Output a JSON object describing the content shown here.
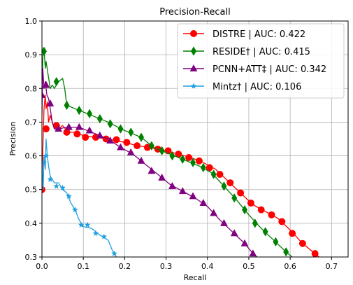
{
  "chart_data": {
    "type": "line",
    "title": "Precision-Recall",
    "xlabel": "Recall",
    "ylabel": "Precision",
    "xlim": [
      0.0,
      0.74
    ],
    "ylim": [
      0.3,
      1.0
    ],
    "xticks": [
      "0.0",
      "0.1",
      "0.2",
      "0.3",
      "0.4",
      "0.5",
      "0.6",
      "0.7"
    ],
    "yticks": [
      "0.3",
      "0.4",
      "0.5",
      "0.6",
      "0.7",
      "0.8",
      "0.9",
      "1.0"
    ],
    "grid": true,
    "legend_position": "top-right",
    "series": [
      {
        "name": "DISTRE | AUC: 0.422",
        "color": "#ff0000",
        "marker": "circle",
        "markers_at": [
          [
            0.0,
            0.5
          ],
          [
            0.01,
            0.68
          ],
          [
            0.035,
            0.69
          ],
          [
            0.06,
            0.67
          ],
          [
            0.085,
            0.665
          ],
          [
            0.105,
            0.655
          ],
          [
            0.13,
            0.655
          ],
          [
            0.155,
            0.65
          ],
          [
            0.18,
            0.648
          ],
          [
            0.205,
            0.64
          ],
          [
            0.23,
            0.63
          ],
          [
            0.255,
            0.625
          ],
          [
            0.28,
            0.62
          ],
          [
            0.305,
            0.615
          ],
          [
            0.33,
            0.605
          ],
          [
            0.355,
            0.595
          ],
          [
            0.38,
            0.585
          ],
          [
            0.405,
            0.565
          ],
          [
            0.43,
            0.545
          ],
          [
            0.455,
            0.52
          ],
          [
            0.48,
            0.49
          ],
          [
            0.505,
            0.46
          ],
          [
            0.53,
            0.44
          ],
          [
            0.555,
            0.425
          ],
          [
            0.58,
            0.405
          ],
          [
            0.605,
            0.37
          ],
          [
            0.63,
            0.34
          ],
          [
            0.66,
            0.31
          ]
        ],
        "values": [
          [
            0.0,
            0.5
          ],
          [
            0.003,
            0.66
          ],
          [
            0.005,
            0.74
          ],
          [
            0.008,
            0.78
          ],
          [
            0.01,
            0.74
          ],
          [
            0.013,
            0.76
          ],
          [
            0.016,
            0.7
          ],
          [
            0.02,
            0.72
          ],
          [
            0.025,
            0.7
          ],
          [
            0.03,
            0.68
          ],
          [
            0.04,
            0.68
          ],
          [
            0.05,
            0.69
          ],
          [
            0.06,
            0.675
          ],
          [
            0.07,
            0.67
          ],
          [
            0.08,
            0.67
          ],
          [
            0.1,
            0.66
          ],
          [
            0.13,
            0.655
          ],
          [
            0.16,
            0.65
          ],
          [
            0.2,
            0.64
          ],
          [
            0.23,
            0.63
          ],
          [
            0.26,
            0.625
          ],
          [
            0.3,
            0.615
          ],
          [
            0.33,
            0.605
          ],
          [
            0.36,
            0.595
          ],
          [
            0.39,
            0.58
          ],
          [
            0.42,
            0.56
          ],
          [
            0.45,
            0.525
          ],
          [
            0.48,
            0.49
          ],
          [
            0.51,
            0.455
          ],
          [
            0.54,
            0.435
          ],
          [
            0.57,
            0.415
          ],
          [
            0.6,
            0.38
          ],
          [
            0.63,
            0.34
          ],
          [
            0.66,
            0.31
          ],
          [
            0.67,
            0.3
          ]
        ]
      },
      {
        "name": "RESIDE† | AUC: 0.415",
        "color": "#008000",
        "marker": "diamond",
        "markers_at": [
          [
            0.005,
            0.91
          ],
          [
            0.035,
            0.82
          ],
          [
            0.06,
            0.75
          ],
          [
            0.09,
            0.735
          ],
          [
            0.115,
            0.725
          ],
          [
            0.14,
            0.71
          ],
          [
            0.165,
            0.695
          ],
          [
            0.19,
            0.68
          ],
          [
            0.215,
            0.67
          ],
          [
            0.24,
            0.655
          ],
          [
            0.265,
            0.63
          ],
          [
            0.29,
            0.615
          ],
          [
            0.315,
            0.6
          ],
          [
            0.34,
            0.59
          ],
          [
            0.365,
            0.58
          ],
          [
            0.39,
            0.565
          ],
          [
            0.415,
            0.545
          ],
          [
            0.44,
            0.51
          ],
          [
            0.465,
            0.475
          ],
          [
            0.49,
            0.44
          ],
          [
            0.515,
            0.4
          ],
          [
            0.54,
            0.375
          ],
          [
            0.565,
            0.345
          ],
          [
            0.59,
            0.315
          ]
        ],
        "values": [
          [
            0.0,
            0.8
          ],
          [
            0.003,
            0.92
          ],
          [
            0.006,
            0.9
          ],
          [
            0.008,
            0.86
          ],
          [
            0.01,
            0.88
          ],
          [
            0.015,
            0.84
          ],
          [
            0.02,
            0.8
          ],
          [
            0.025,
            0.81
          ],
          [
            0.03,
            0.8
          ],
          [
            0.04,
            0.82
          ],
          [
            0.05,
            0.83
          ],
          [
            0.055,
            0.8
          ],
          [
            0.06,
            0.75
          ],
          [
            0.08,
            0.74
          ],
          [
            0.1,
            0.73
          ],
          [
            0.13,
            0.715
          ],
          [
            0.16,
            0.7
          ],
          [
            0.2,
            0.675
          ],
          [
            0.24,
            0.655
          ],
          [
            0.27,
            0.625
          ],
          [
            0.3,
            0.61
          ],
          [
            0.34,
            0.59
          ],
          [
            0.38,
            0.57
          ],
          [
            0.41,
            0.55
          ],
          [
            0.44,
            0.51
          ],
          [
            0.47,
            0.47
          ],
          [
            0.5,
            0.425
          ],
          [
            0.53,
            0.385
          ],
          [
            0.56,
            0.35
          ],
          [
            0.59,
            0.315
          ],
          [
            0.605,
            0.3
          ]
        ]
      },
      {
        "name": "PCNN+ATT‡ | AUC: 0.342",
        "color": "#800080",
        "marker": "triangle",
        "markers_at": [
          [
            0.0,
            0.78
          ],
          [
            0.01,
            0.81
          ],
          [
            0.02,
            0.755
          ],
          [
            0.04,
            0.68
          ],
          [
            0.065,
            0.685
          ],
          [
            0.09,
            0.685
          ],
          [
            0.115,
            0.675
          ],
          [
            0.14,
            0.66
          ],
          [
            0.165,
            0.645
          ],
          [
            0.19,
            0.625
          ],
          [
            0.215,
            0.61
          ],
          [
            0.24,
            0.585
          ],
          [
            0.265,
            0.555
          ],
          [
            0.29,
            0.535
          ],
          [
            0.315,
            0.51
          ],
          [
            0.34,
            0.495
          ],
          [
            0.365,
            0.48
          ],
          [
            0.39,
            0.46
          ],
          [
            0.415,
            0.43
          ],
          [
            0.44,
            0.4
          ],
          [
            0.465,
            0.37
          ],
          [
            0.49,
            0.34
          ],
          [
            0.51,
            0.31
          ]
        ],
        "values": [
          [
            0.0,
            0.72
          ],
          [
            0.002,
            0.86
          ],
          [
            0.005,
            0.8
          ],
          [
            0.008,
            0.82
          ],
          [
            0.012,
            0.78
          ],
          [
            0.016,
            0.77
          ],
          [
            0.02,
            0.74
          ],
          [
            0.025,
            0.7
          ],
          [
            0.03,
            0.68
          ],
          [
            0.04,
            0.68
          ],
          [
            0.06,
            0.685
          ],
          [
            0.08,
            0.685
          ],
          [
            0.1,
            0.68
          ],
          [
            0.13,
            0.665
          ],
          [
            0.16,
            0.65
          ],
          [
            0.19,
            0.625
          ],
          [
            0.22,
            0.605
          ],
          [
            0.25,
            0.575
          ],
          [
            0.28,
            0.545
          ],
          [
            0.31,
            0.515
          ],
          [
            0.34,
            0.495
          ],
          [
            0.37,
            0.475
          ],
          [
            0.4,
            0.45
          ],
          [
            0.43,
            0.41
          ],
          [
            0.46,
            0.375
          ],
          [
            0.49,
            0.34
          ],
          [
            0.51,
            0.31
          ],
          [
            0.52,
            0.3
          ]
        ]
      },
      {
        "name": "Mintz† | AUC: 0.106",
        "color": "#1f9fe0",
        "marker": "star",
        "markers_at": [
          [
            0.005,
            0.58
          ],
          [
            0.01,
            0.6
          ],
          [
            0.02,
            0.53
          ],
          [
            0.035,
            0.51
          ],
          [
            0.05,
            0.505
          ],
          [
            0.065,
            0.48
          ],
          [
            0.08,
            0.44
          ],
          [
            0.095,
            0.395
          ],
          [
            0.11,
            0.395
          ],
          [
            0.13,
            0.37
          ],
          [
            0.15,
            0.36
          ],
          [
            0.175,
            0.31
          ]
        ],
        "values": [
          [
            0.0,
            0.58
          ],
          [
            0.003,
            0.5
          ],
          [
            0.005,
            0.6
          ],
          [
            0.008,
            0.56
          ],
          [
            0.01,
            0.65
          ],
          [
            0.013,
            0.6
          ],
          [
            0.016,
            0.57
          ],
          [
            0.02,
            0.54
          ],
          [
            0.03,
            0.52
          ],
          [
            0.04,
            0.52
          ],
          [
            0.05,
            0.5
          ],
          [
            0.06,
            0.49
          ],
          [
            0.07,
            0.46
          ],
          [
            0.08,
            0.44
          ],
          [
            0.09,
            0.41
          ],
          [
            0.1,
            0.39
          ],
          [
            0.12,
            0.385
          ],
          [
            0.14,
            0.365
          ],
          [
            0.16,
            0.35
          ],
          [
            0.17,
            0.32
          ],
          [
            0.18,
            0.3
          ]
        ]
      }
    ]
  }
}
